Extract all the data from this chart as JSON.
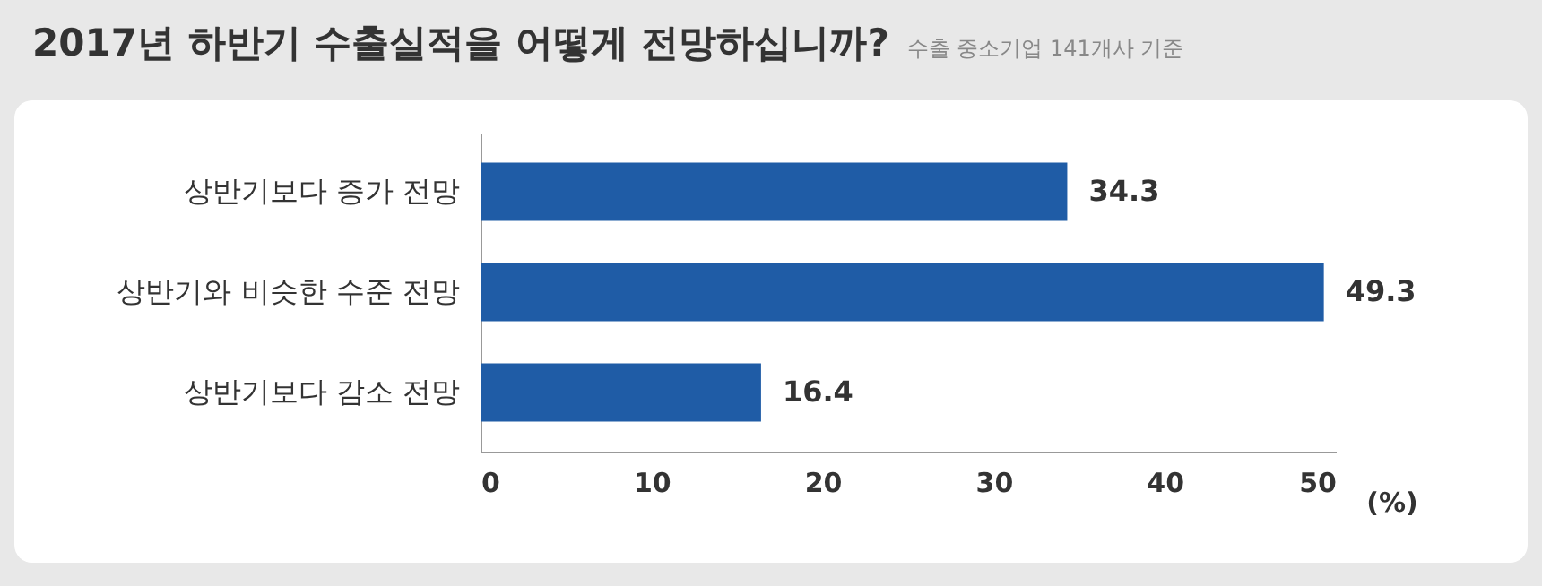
{
  "chart_data": {
    "type": "bar",
    "orientation": "horizontal",
    "title": "2017년 하반기 수출실적을 어떻게 전망하십니까?",
    "subtitle": "수출 중소기업 141개사 기준",
    "xlabel": "(%)",
    "categories": [
      "상반기보다 증가 전망",
      "상반기와 비슷한 수준 전망",
      "상반기보다 감소 전망"
    ],
    "values": [
      34.3,
      49.3,
      16.4
    ],
    "color": "#1f5ca6",
    "xlim": [
      0,
      50
    ],
    "xticks": [
      0,
      10,
      20,
      30,
      40,
      50
    ],
    "data_labels": true,
    "grid": false
  }
}
